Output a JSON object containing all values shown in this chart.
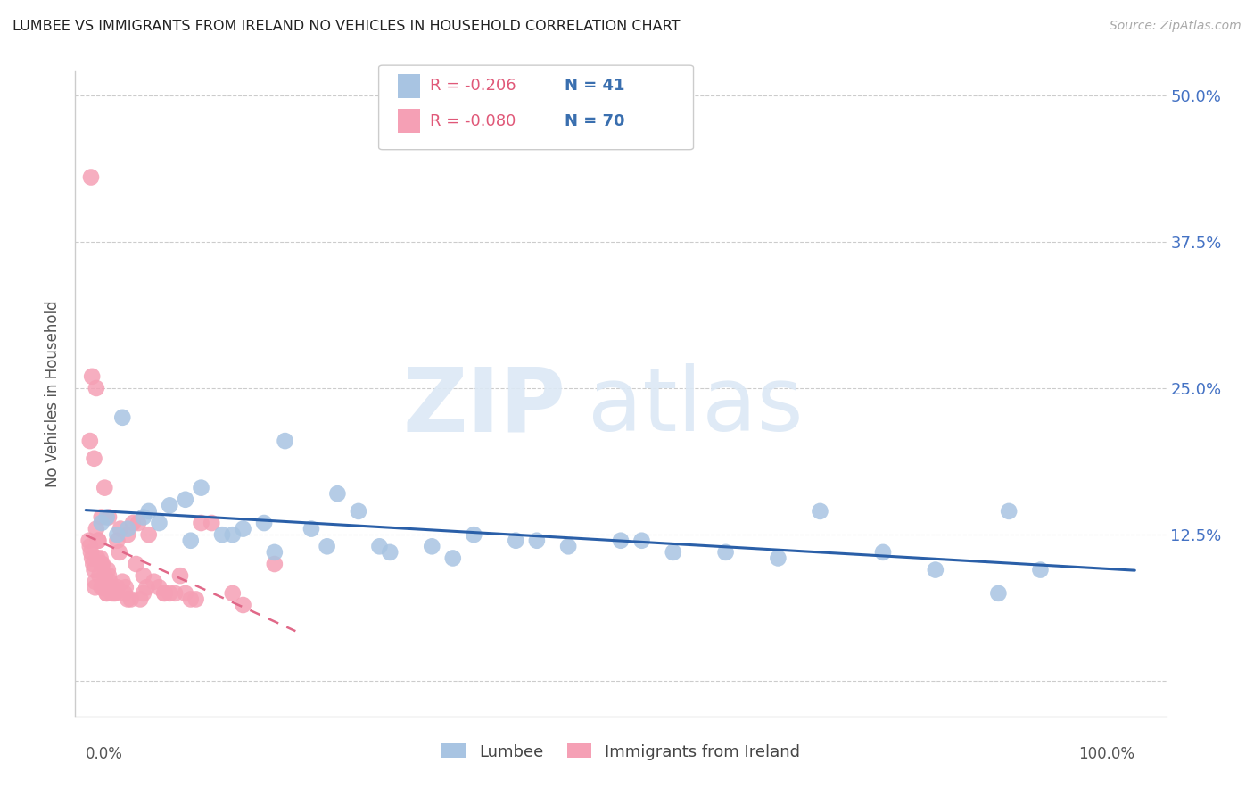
{
  "title": "LUMBEE VS IMMIGRANTS FROM IRELAND NO VEHICLES IN HOUSEHOLD CORRELATION CHART",
  "source": "Source: ZipAtlas.com",
  "ylabel": "No Vehicles in Household",
  "legend_label1": "Lumbee",
  "legend_label2": "Immigrants from Ireland",
  "R1": "-0.206",
  "N1": "41",
  "R2": "-0.080",
  "N2": "70",
  "color_blue": "#a8c4e2",
  "color_pink": "#f5a0b5",
  "color_blue_line": "#2a5fa8",
  "color_pink_line": "#e06888",
  "yticks": [
    0.0,
    12.5,
    25.0,
    37.5,
    50.0
  ],
  "ytick_labels": [
    "",
    "12.5%",
    "25.0%",
    "37.5%",
    "50.0%"
  ],
  "lumbee_x": [
    1.5,
    2.0,
    3.5,
    4.0,
    5.5,
    7.0,
    8.0,
    9.5,
    11.0,
    13.0,
    15.0,
    17.0,
    19.0,
    21.5,
    24.0,
    26.0,
    29.0,
    33.0,
    37.0,
    41.0,
    46.0,
    51.0,
    56.0,
    61.0,
    66.0,
    70.0,
    76.0,
    81.0,
    87.0,
    91.0,
    3.0,
    6.0,
    10.0,
    14.0,
    18.0,
    23.0,
    28.0,
    35.0,
    43.0,
    53.0,
    88.0
  ],
  "lumbee_y": [
    13.5,
    14.0,
    22.5,
    13.0,
    14.0,
    13.5,
    15.0,
    15.5,
    16.5,
    12.5,
    13.0,
    13.5,
    20.5,
    13.0,
    16.0,
    14.5,
    11.0,
    11.5,
    12.5,
    12.0,
    11.5,
    12.0,
    11.0,
    11.0,
    10.5,
    14.5,
    11.0,
    9.5,
    7.5,
    9.5,
    12.5,
    14.5,
    12.0,
    12.5,
    11.0,
    11.5,
    11.5,
    10.5,
    12.0,
    12.0,
    14.5
  ],
  "ireland_x": [
    0.3,
    0.4,
    0.5,
    0.6,
    0.7,
    0.8,
    0.9,
    1.0,
    1.1,
    1.2,
    1.3,
    1.4,
    1.5,
    1.6,
    1.7,
    1.8,
    1.9,
    2.0,
    2.1,
    2.2,
    2.3,
    2.5,
    2.7,
    2.8,
    3.0,
    3.2,
    3.5,
    3.7,
    4.0,
    4.3,
    4.5,
    4.8,
    5.0,
    5.2,
    5.5,
    5.8,
    6.0,
    6.5,
    7.0,
    7.5,
    8.0,
    8.5,
    9.0,
    9.5,
    10.0,
    10.5,
    11.0,
    12.0,
    14.0,
    15.0,
    18.0,
    0.5,
    0.8,
    1.2,
    1.5,
    2.0,
    2.5,
    3.0,
    4.0,
    5.5,
    7.5,
    0.6,
    1.0,
    1.8,
    3.3,
    0.4,
    0.9,
    1.5,
    2.2,
    3.8
  ],
  "ireland_y": [
    12.0,
    11.5,
    11.0,
    10.5,
    10.0,
    9.5,
    8.5,
    13.0,
    10.5,
    12.0,
    9.0,
    10.5,
    8.0,
    10.0,
    8.0,
    9.0,
    8.5,
    7.5,
    9.5,
    14.0,
    8.5,
    8.0,
    7.5,
    7.5,
    8.0,
    11.0,
    8.5,
    7.5,
    7.0,
    7.0,
    13.5,
    10.0,
    13.5,
    7.0,
    9.0,
    8.0,
    12.5,
    8.5,
    8.0,
    7.5,
    7.5,
    7.5,
    9.0,
    7.5,
    7.0,
    7.0,
    13.5,
    13.5,
    7.5,
    6.5,
    10.0,
    43.0,
    19.0,
    12.0,
    14.0,
    7.5,
    7.5,
    12.0,
    12.5,
    7.5,
    7.5,
    26.0,
    25.0,
    16.5,
    13.0,
    20.5,
    8.0,
    10.0,
    9.0,
    8.0
  ]
}
